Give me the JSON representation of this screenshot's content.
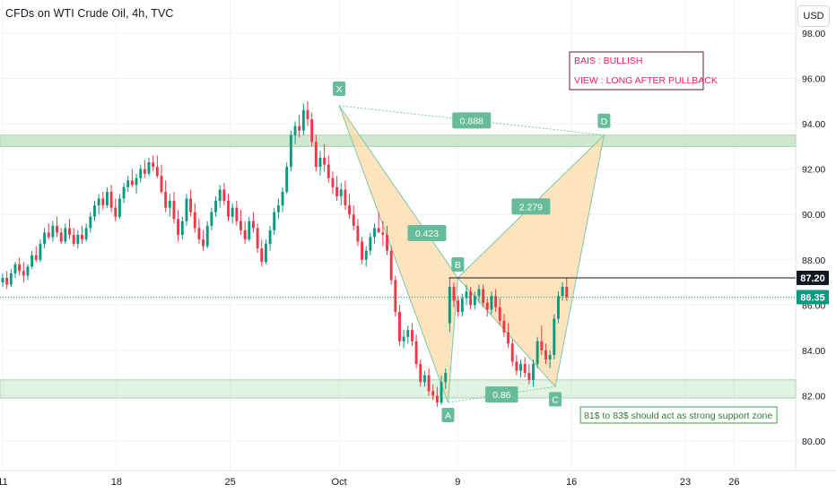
{
  "header": {
    "title": "CFDs on WTI Crude Oil, 4h, TVC",
    "currency": "USD"
  },
  "chart_data": {
    "type": "candlestick",
    "ylim": [
      79,
      99
    ],
    "y_ticks": [
      80,
      82,
      84,
      86,
      88,
      90,
      92,
      94,
      96,
      98
    ],
    "y_tick_labels": [
      "80.00",
      "82.00",
      "84.00",
      "86.00",
      "88.00",
      "90.00",
      "92.00",
      "94.00",
      "96.00",
      "98.00"
    ],
    "x_ticks": [
      {
        "label": "11",
        "day": 0
      },
      {
        "label": "18",
        "day": 7
      },
      {
        "label": "25",
        "day": 14
      },
      {
        "label": "Oct",
        "day": 20.7
      },
      {
        "label": "9",
        "day": 28
      },
      {
        "label": "16",
        "day": 35
      },
      {
        "label": "23",
        "day": 42
      },
      {
        "label": "26",
        "day": 45
      }
    ],
    "price_tags": [
      {
        "label": "87.20",
        "value": 87.2,
        "color": "#131722"
      },
      {
        "label": "86.35",
        "value": 86.35,
        "color": "#089981"
      }
    ],
    "candles_day_range": [
      0,
      34.7
    ],
    "candles": [
      {
        "o": 87.0,
        "h": 87.4,
        "l": 86.8,
        "c": 87.2
      },
      {
        "o": 87.2,
        "h": 87.5,
        "l": 86.7,
        "c": 86.9
      },
      {
        "o": 86.9,
        "h": 87.6,
        "l": 86.8,
        "c": 87.4
      },
      {
        "o": 87.4,
        "h": 87.9,
        "l": 87.2,
        "c": 87.8
      },
      {
        "o": 87.8,
        "h": 88.1,
        "l": 87.3,
        "c": 87.5
      },
      {
        "o": 87.5,
        "h": 87.9,
        "l": 87.0,
        "c": 87.3
      },
      {
        "o": 87.3,
        "h": 87.8,
        "l": 87.1,
        "c": 87.7
      },
      {
        "o": 87.7,
        "h": 88.4,
        "l": 87.6,
        "c": 88.2
      },
      {
        "o": 88.2,
        "h": 88.6,
        "l": 87.9,
        "c": 88.0
      },
      {
        "o": 88.0,
        "h": 88.9,
        "l": 87.9,
        "c": 88.7
      },
      {
        "o": 88.7,
        "h": 89.4,
        "l": 88.5,
        "c": 89.2
      },
      {
        "o": 89.2,
        "h": 89.6,
        "l": 88.9,
        "c": 89.0
      },
      {
        "o": 89.0,
        "h": 89.7,
        "l": 88.8,
        "c": 89.5
      },
      {
        "o": 89.5,
        "h": 89.9,
        "l": 89.0,
        "c": 89.2
      },
      {
        "o": 89.2,
        "h": 89.4,
        "l": 88.7,
        "c": 88.8
      },
      {
        "o": 88.8,
        "h": 89.6,
        "l": 88.7,
        "c": 89.4
      },
      {
        "o": 89.4,
        "h": 89.8,
        "l": 88.9,
        "c": 89.1
      },
      {
        "o": 89.1,
        "h": 89.4,
        "l": 88.6,
        "c": 88.7
      },
      {
        "o": 88.7,
        "h": 89.3,
        "l": 88.5,
        "c": 89.1
      },
      {
        "o": 89.1,
        "h": 89.5,
        "l": 88.7,
        "c": 88.9
      },
      {
        "o": 88.9,
        "h": 89.6,
        "l": 88.8,
        "c": 89.4
      },
      {
        "o": 89.4,
        "h": 90.1,
        "l": 89.2,
        "c": 89.9
      },
      {
        "o": 89.9,
        "h": 90.6,
        "l": 89.7,
        "c": 90.4
      },
      {
        "o": 90.4,
        "h": 90.9,
        "l": 90.0,
        "c": 90.7
      },
      {
        "o": 90.7,
        "h": 91.0,
        "l": 90.2,
        "c": 90.4
      },
      {
        "o": 90.4,
        "h": 91.2,
        "l": 90.3,
        "c": 91.0
      },
      {
        "o": 91.0,
        "h": 91.3,
        "l": 90.1,
        "c": 90.3
      },
      {
        "o": 90.3,
        "h": 90.7,
        "l": 89.7,
        "c": 89.9
      },
      {
        "o": 89.9,
        "h": 90.9,
        "l": 89.8,
        "c": 90.7
      },
      {
        "o": 90.7,
        "h": 91.4,
        "l": 90.5,
        "c": 91.2
      },
      {
        "o": 91.2,
        "h": 91.7,
        "l": 91.0,
        "c": 91.5
      },
      {
        "o": 91.5,
        "h": 92.0,
        "l": 91.2,
        "c": 91.3
      },
      {
        "o": 91.3,
        "h": 91.8,
        "l": 90.9,
        "c": 91.6
      },
      {
        "o": 91.6,
        "h": 92.2,
        "l": 91.4,
        "c": 92.0
      },
      {
        "o": 92.0,
        "h": 92.4,
        "l": 91.6,
        "c": 91.8
      },
      {
        "o": 91.8,
        "h": 92.5,
        "l": 91.7,
        "c": 92.3
      },
      {
        "o": 92.3,
        "h": 92.6,
        "l": 91.9,
        "c": 92.1
      },
      {
        "o": 92.1,
        "h": 92.6,
        "l": 91.6,
        "c": 91.7
      },
      {
        "o": 91.7,
        "h": 92.2,
        "l": 90.9,
        "c": 91.0
      },
      {
        "o": 91.0,
        "h": 91.5,
        "l": 90.1,
        "c": 90.3
      },
      {
        "o": 90.3,
        "h": 90.9,
        "l": 89.9,
        "c": 90.6
      },
      {
        "o": 90.6,
        "h": 91.0,
        "l": 89.6,
        "c": 89.8
      },
      {
        "o": 89.8,
        "h": 90.2,
        "l": 88.8,
        "c": 89.1
      },
      {
        "o": 89.1,
        "h": 89.9,
        "l": 88.9,
        "c": 89.7
      },
      {
        "o": 89.7,
        "h": 90.9,
        "l": 89.5,
        "c": 90.7
      },
      {
        "o": 90.7,
        "h": 91.1,
        "l": 89.9,
        "c": 90.1
      },
      {
        "o": 90.1,
        "h": 90.5,
        "l": 89.2,
        "c": 89.4
      },
      {
        "o": 89.4,
        "h": 89.8,
        "l": 88.7,
        "c": 88.9
      },
      {
        "o": 88.9,
        "h": 89.3,
        "l": 88.4,
        "c": 88.6
      },
      {
        "o": 88.6,
        "h": 89.7,
        "l": 88.5,
        "c": 89.5
      },
      {
        "o": 89.5,
        "h": 90.3,
        "l": 89.3,
        "c": 90.1
      },
      {
        "o": 90.1,
        "h": 90.8,
        "l": 89.9,
        "c": 90.6
      },
      {
        "o": 90.6,
        "h": 91.3,
        "l": 90.3,
        "c": 91.1
      },
      {
        "o": 91.1,
        "h": 91.4,
        "l": 90.4,
        "c": 90.6
      },
      {
        "o": 90.6,
        "h": 90.9,
        "l": 89.7,
        "c": 89.9
      },
      {
        "o": 89.9,
        "h": 90.5,
        "l": 89.6,
        "c": 90.3
      },
      {
        "o": 90.3,
        "h": 90.6,
        "l": 89.5,
        "c": 89.7
      },
      {
        "o": 89.7,
        "h": 90.2,
        "l": 89.1,
        "c": 89.3
      },
      {
        "o": 89.3,
        "h": 89.7,
        "l": 88.7,
        "c": 88.9
      },
      {
        "o": 88.9,
        "h": 89.9,
        "l": 88.8,
        "c": 89.7
      },
      {
        "o": 89.7,
        "h": 90.1,
        "l": 89.2,
        "c": 89.4
      },
      {
        "o": 89.4,
        "h": 89.6,
        "l": 88.3,
        "c": 88.5
      },
      {
        "o": 88.5,
        "h": 88.9,
        "l": 87.7,
        "c": 87.9
      },
      {
        "o": 87.9,
        "h": 88.9,
        "l": 87.8,
        "c": 88.7
      },
      {
        "o": 88.7,
        "h": 89.5,
        "l": 88.4,
        "c": 89.3
      },
      {
        "o": 89.3,
        "h": 90.3,
        "l": 89.1,
        "c": 90.1
      },
      {
        "o": 90.1,
        "h": 90.7,
        "l": 89.8,
        "c": 90.4
      },
      {
        "o": 90.4,
        "h": 91.2,
        "l": 90.1,
        "c": 91.0
      },
      {
        "o": 91.0,
        "h": 92.3,
        "l": 90.9,
        "c": 92.1
      },
      {
        "o": 92.1,
        "h": 93.7,
        "l": 91.9,
        "c": 93.5
      },
      {
        "o": 93.5,
        "h": 94.1,
        "l": 93.1,
        "c": 93.9
      },
      {
        "o": 93.9,
        "h": 94.4,
        "l": 93.4,
        "c": 93.7
      },
      {
        "o": 93.7,
        "h": 94.9,
        "l": 93.5,
        "c": 94.6
      },
      {
        "o": 94.6,
        "h": 95.0,
        "l": 93.9,
        "c": 94.2
      },
      {
        "o": 94.2,
        "h": 94.5,
        "l": 93.0,
        "c": 93.2
      },
      {
        "o": 93.2,
        "h": 93.5,
        "l": 91.9,
        "c": 92.1
      },
      {
        "o": 92.1,
        "h": 92.8,
        "l": 91.7,
        "c": 92.5
      },
      {
        "o": 92.5,
        "h": 93.1,
        "l": 91.9,
        "c": 92.2
      },
      {
        "o": 92.2,
        "h": 92.6,
        "l": 91.4,
        "c": 91.6
      },
      {
        "o": 91.6,
        "h": 91.9,
        "l": 90.9,
        "c": 91.2
      },
      {
        "o": 91.2,
        "h": 91.7,
        "l": 90.6,
        "c": 90.8
      },
      {
        "o": 90.8,
        "h": 91.4,
        "l": 90.4,
        "c": 91.1
      },
      {
        "o": 91.1,
        "h": 91.5,
        "l": 90.2,
        "c": 90.4
      },
      {
        "o": 90.4,
        "h": 90.9,
        "l": 89.8,
        "c": 90.0
      },
      {
        "o": 90.0,
        "h": 90.4,
        "l": 89.3,
        "c": 89.5
      },
      {
        "o": 89.5,
        "h": 89.8,
        "l": 88.6,
        "c": 88.8
      },
      {
        "o": 88.8,
        "h": 89.0,
        "l": 87.8,
        "c": 88.0
      },
      {
        "o": 88.0,
        "h": 88.6,
        "l": 87.7,
        "c": 88.4
      },
      {
        "o": 88.4,
        "h": 89.2,
        "l": 88.2,
        "c": 89.0
      },
      {
        "o": 89.0,
        "h": 89.6,
        "l": 88.7,
        "c": 89.4
      },
      {
        "o": 89.4,
        "h": 90.1,
        "l": 89.2,
        "c": 89.2
      },
      {
        "o": 89.2,
        "h": 89.7,
        "l": 88.6,
        "c": 89.1
      },
      {
        "o": 89.1,
        "h": 89.5,
        "l": 88.2,
        "c": 88.4
      },
      {
        "o": 88.4,
        "h": 88.6,
        "l": 86.9,
        "c": 87.1
      },
      {
        "o": 87.1,
        "h": 87.3,
        "l": 85.5,
        "c": 85.7
      },
      {
        "o": 85.7,
        "h": 86.0,
        "l": 84.2,
        "c": 84.4
      },
      {
        "o": 84.4,
        "h": 84.9,
        "l": 84.1,
        "c": 84.6
      },
      {
        "o": 84.6,
        "h": 85.1,
        "l": 84.3,
        "c": 84.9
      },
      {
        "o": 84.9,
        "h": 85.2,
        "l": 84.2,
        "c": 84.4
      },
      {
        "o": 84.4,
        "h": 84.7,
        "l": 83.2,
        "c": 83.4
      },
      {
        "o": 83.4,
        "h": 83.6,
        "l": 82.4,
        "c": 82.6
      },
      {
        "o": 82.6,
        "h": 83.1,
        "l": 82.4,
        "c": 82.9
      },
      {
        "o": 82.9,
        "h": 83.2,
        "l": 82.0,
        "c": 82.2
      },
      {
        "o": 82.2,
        "h": 82.5,
        "l": 81.8,
        "c": 82.0
      },
      {
        "o": 82.0,
        "h": 82.4,
        "l": 81.5,
        "c": 81.7
      },
      {
        "o": 81.7,
        "h": 82.9,
        "l": 81.6,
        "c": 82.6
      },
      {
        "o": 82.6,
        "h": 83.2,
        "l": 82.3,
        "c": 83.0
      },
      {
        "o": 85.2,
        "h": 87.2,
        "l": 84.8,
        "c": 86.8
      },
      {
        "o": 86.8,
        "h": 87.0,
        "l": 85.9,
        "c": 86.2
      },
      {
        "o": 86.2,
        "h": 86.4,
        "l": 85.5,
        "c": 85.7
      },
      {
        "o": 85.7,
        "h": 86.5,
        "l": 85.5,
        "c": 86.3
      },
      {
        "o": 86.3,
        "h": 86.9,
        "l": 86.0,
        "c": 86.6
      },
      {
        "o": 86.6,
        "h": 86.8,
        "l": 85.8,
        "c": 86.0
      },
      {
        "o": 86.0,
        "h": 86.6,
        "l": 85.8,
        "c": 86.4
      },
      {
        "o": 86.4,
        "h": 86.9,
        "l": 86.1,
        "c": 86.7
      },
      {
        "o": 86.7,
        "h": 86.9,
        "l": 85.9,
        "c": 86.1
      },
      {
        "o": 86.1,
        "h": 86.3,
        "l": 85.5,
        "c": 85.8
      },
      {
        "o": 85.8,
        "h": 86.6,
        "l": 85.6,
        "c": 86.4
      },
      {
        "o": 86.4,
        "h": 86.7,
        "l": 85.7,
        "c": 85.9
      },
      {
        "o": 85.9,
        "h": 86.3,
        "l": 85.1,
        "c": 85.3
      },
      {
        "o": 85.3,
        "h": 85.6,
        "l": 84.6,
        "c": 84.8
      },
      {
        "o": 84.8,
        "h": 85.2,
        "l": 84.1,
        "c": 84.3
      },
      {
        "o": 84.3,
        "h": 84.5,
        "l": 83.3,
        "c": 83.5
      },
      {
        "o": 83.5,
        "h": 83.8,
        "l": 82.9,
        "c": 83.1
      },
      {
        "o": 83.1,
        "h": 83.6,
        "l": 82.8,
        "c": 83.4
      },
      {
        "o": 83.4,
        "h": 83.7,
        "l": 82.8,
        "c": 83.0
      },
      {
        "o": 83.0,
        "h": 83.4,
        "l": 82.5,
        "c": 82.7
      },
      {
        "o": 82.7,
        "h": 83.6,
        "l": 82.4,
        "c": 83.4
      },
      {
        "o": 83.4,
        "h": 84.6,
        "l": 83.2,
        "c": 84.4
      },
      {
        "o": 84.4,
        "h": 85.1,
        "l": 83.8,
        "c": 84.0
      },
      {
        "o": 84.0,
        "h": 84.3,
        "l": 83.4,
        "c": 83.6
      },
      {
        "o": 83.6,
        "h": 84.0,
        "l": 83.2,
        "c": 83.8
      },
      {
        "o": 83.8,
        "h": 85.6,
        "l": 83.6,
        "c": 85.4
      },
      {
        "o": 85.4,
        "h": 86.6,
        "l": 85.2,
        "c": 86.4
      },
      {
        "o": 86.4,
        "h": 87.0,
        "l": 86.2,
        "c": 86.8
      },
      {
        "o": 86.8,
        "h": 87.2,
        "l": 86.2,
        "c": 86.35
      }
    ],
    "harmonic_pattern": {
      "points": [
        {
          "label": "X",
          "day": 20.7,
          "value": 94.8
        },
        {
          "label": "A",
          "day": 27.4,
          "value": 81.7
        },
        {
          "label": "B",
          "day": 28.0,
          "value": 87.2
        },
        {
          "label": "C",
          "day": 34.0,
          "value": 82.4
        },
        {
          "label": "D",
          "day": 37.0,
          "value": 93.5
        }
      ],
      "ratios": [
        "0.888",
        "0.423",
        "2.279",
        "0.86"
      ]
    },
    "zones": [
      {
        "name": "resistance",
        "from": 93.0,
        "to": 93.5
      },
      {
        "name": "support",
        "from": 81.9,
        "to": 82.7
      }
    ],
    "current_price": 86.35,
    "annotations": {
      "bias": "BAIS : BULLISH",
      "view": "VIEW : LONG AFTER PULLBACK",
      "support_note": "81$ to 83$ should act as strong support zone"
    },
    "colors": {
      "up": "#089981",
      "down": "#f23645",
      "zone": "#a5d6a7",
      "pattern_fill": "#fcd9a8",
      "label_bg": "#66bb9a",
      "bias_text": "#e91e63"
    }
  }
}
